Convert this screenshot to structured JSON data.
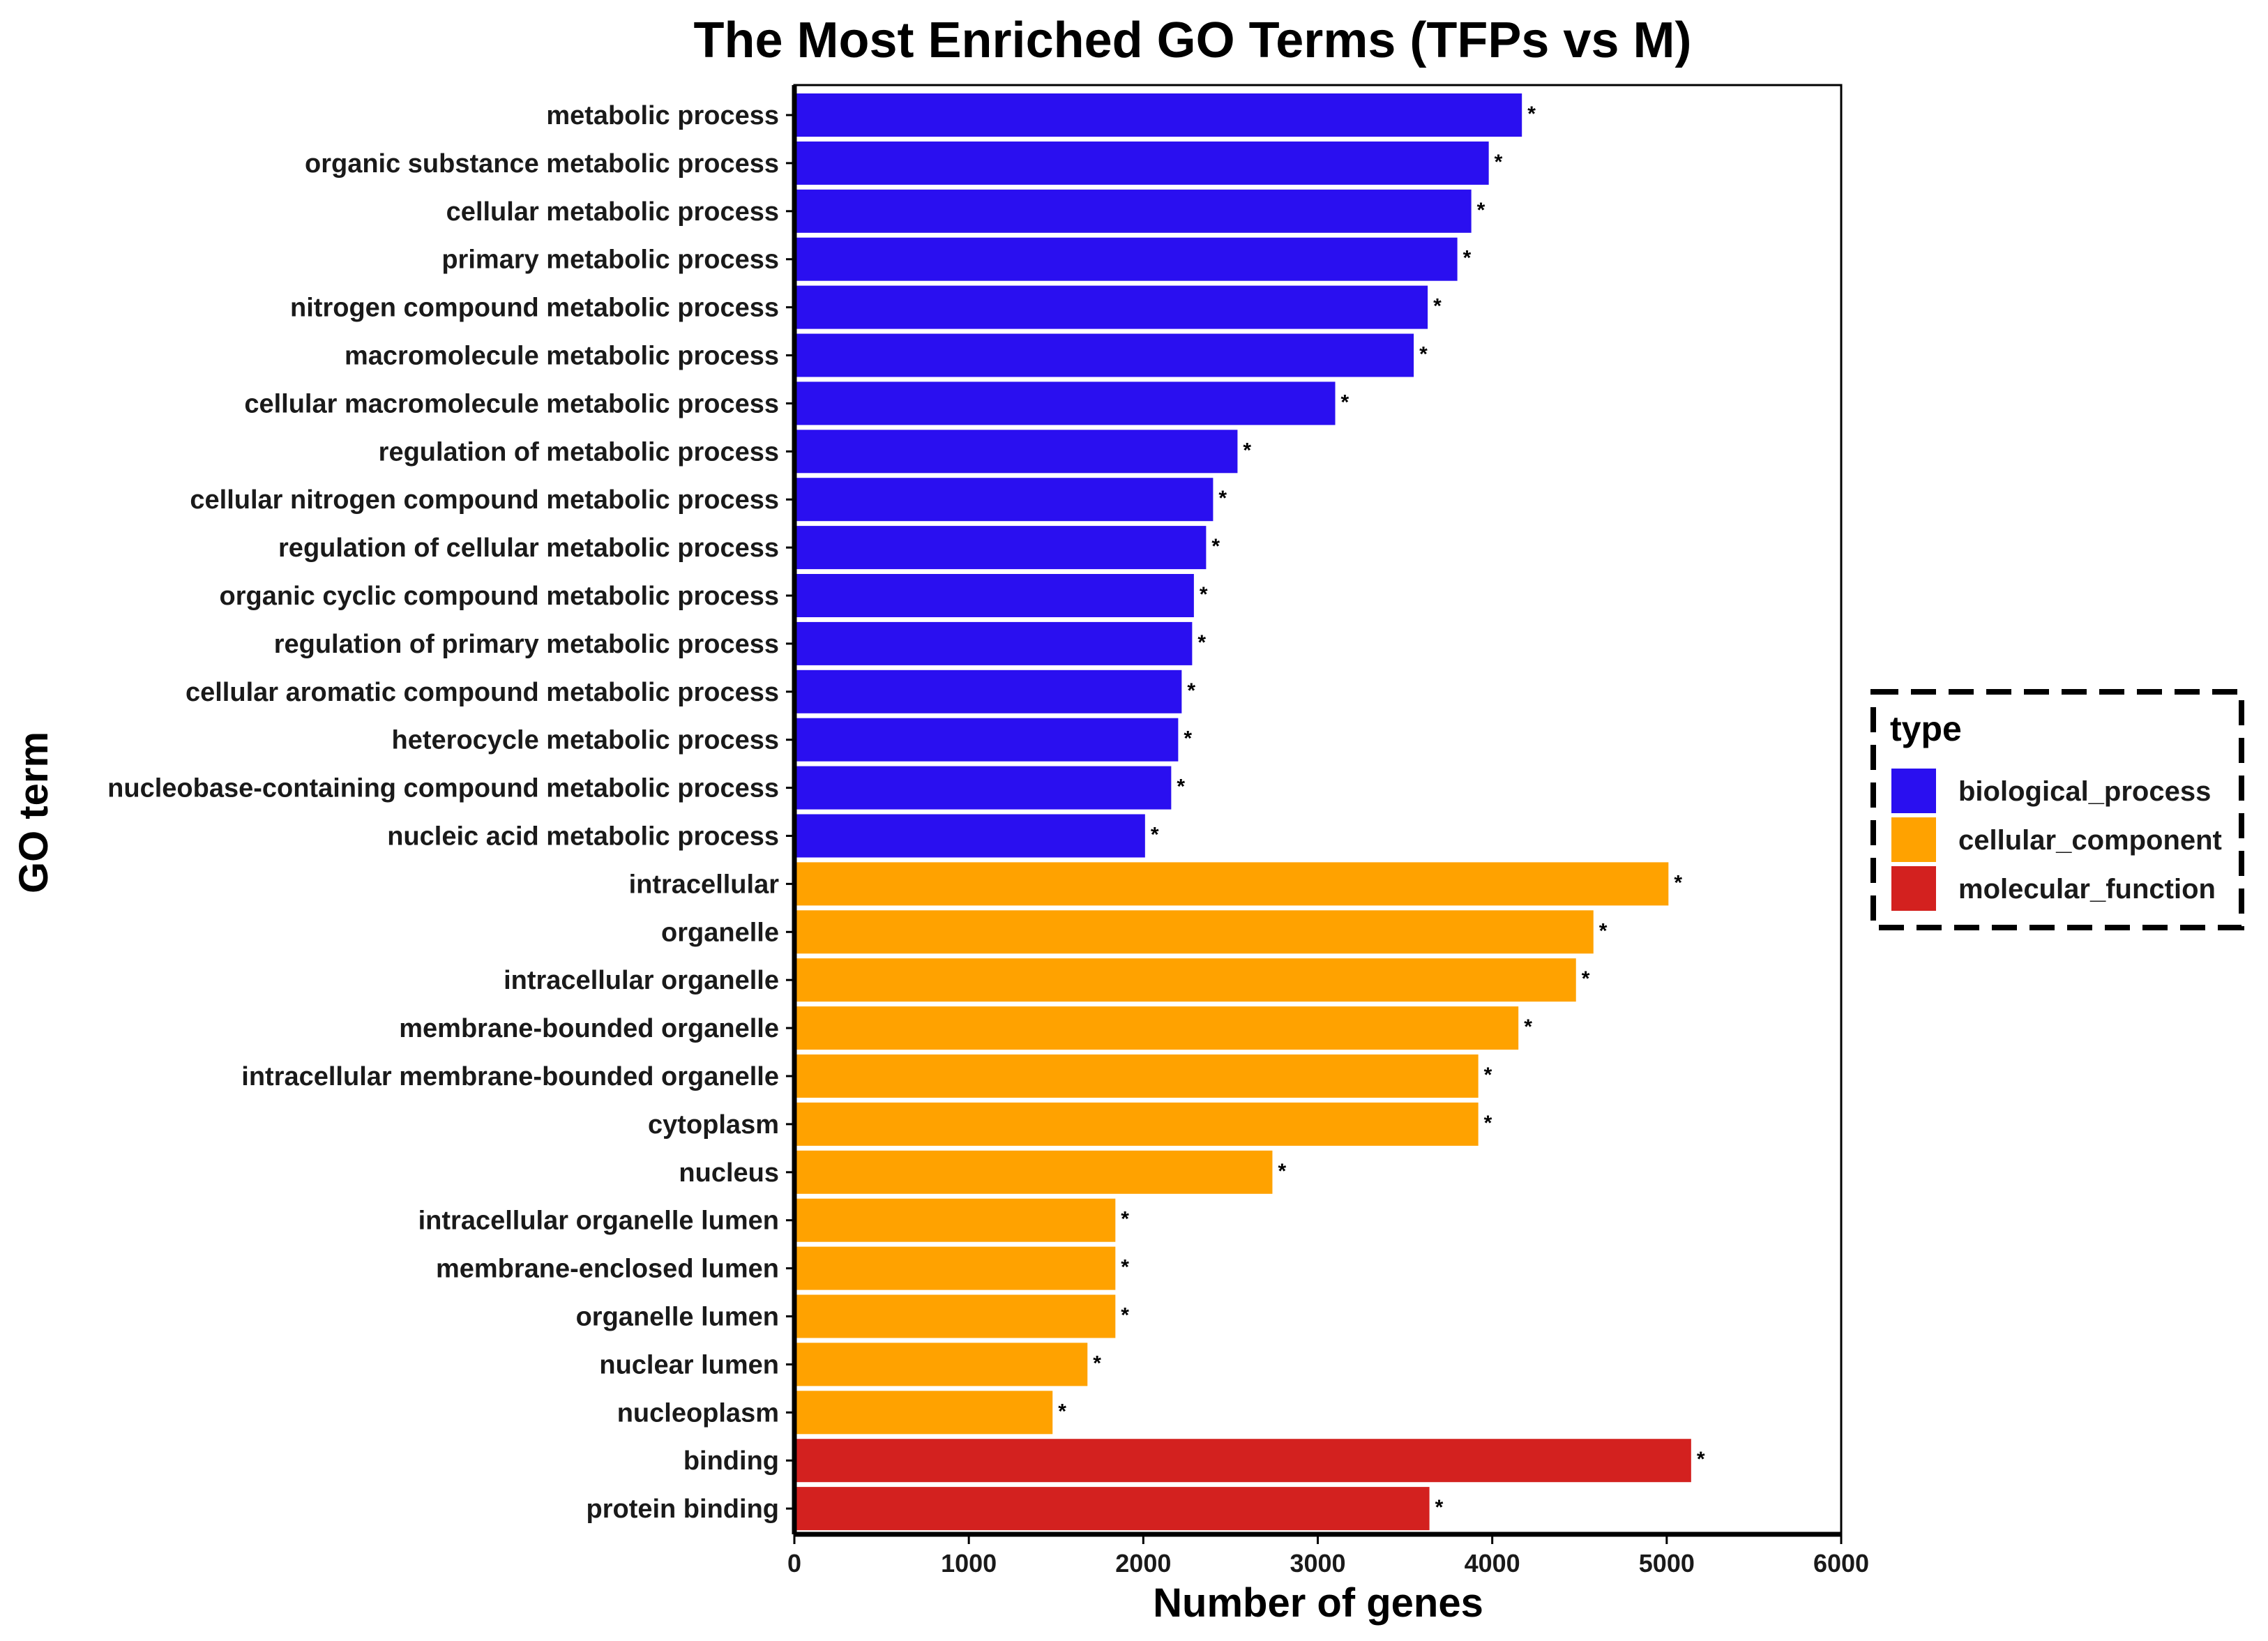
{
  "chart_data": {
    "type": "bar",
    "orientation": "horizontal",
    "title": "The Most Enriched GO Terms (TFPs vs M)",
    "xlabel": "Number of genes",
    "ylabel": "GO term",
    "xlim": [
      0,
      6000
    ],
    "xticks": [
      0,
      1000,
      2000,
      3000,
      4000,
      5000,
      6000
    ],
    "grid": false,
    "legend": {
      "title": "type",
      "position": "right",
      "entries": [
        {
          "label": "biological_process",
          "color": "#2a0ff0"
        },
        {
          "label": "cellular_component",
          "color": "#ffa200"
        },
        {
          "label": "molecular_function",
          "color": "#d3211f"
        }
      ]
    },
    "annotation_marker": "*",
    "categories": [
      "metabolic process",
      "organic substance metabolic process",
      "cellular metabolic process",
      "primary metabolic process",
      "nitrogen compound metabolic process",
      "macromolecule metabolic process",
      "cellular macromolecule metabolic process",
      "regulation of metabolic process",
      "cellular nitrogen compound metabolic process",
      "regulation of cellular metabolic process",
      "organic cyclic compound metabolic process",
      "regulation of primary metabolic process",
      "cellular aromatic compound metabolic process",
      "heterocycle metabolic process",
      "nucleobase-containing compound metabolic process",
      "nucleic acid metabolic process",
      "intracellular",
      "organelle",
      "intracellular organelle",
      "membrane-bounded organelle",
      "intracellular membrane-bounded organelle",
      "cytoplasm",
      "nucleus",
      "intracellular organelle lumen",
      "membrane-enclosed lumen",
      "organelle lumen",
      "nuclear lumen",
      "nucleoplasm",
      "binding",
      "protein binding"
    ],
    "values": [
      4170,
      3980,
      3880,
      3800,
      3630,
      3550,
      3100,
      2540,
      2400,
      2360,
      2290,
      2280,
      2220,
      2200,
      2160,
      2010,
      5010,
      4580,
      4480,
      4150,
      3920,
      3920,
      2740,
      1840,
      1840,
      1840,
      1680,
      1480,
      5140,
      3640
    ],
    "types": [
      "biological_process",
      "biological_process",
      "biological_process",
      "biological_process",
      "biological_process",
      "biological_process",
      "biological_process",
      "biological_process",
      "biological_process",
      "biological_process",
      "biological_process",
      "biological_process",
      "biological_process",
      "biological_process",
      "biological_process",
      "biological_process",
      "cellular_component",
      "cellular_component",
      "cellular_component",
      "cellular_component",
      "cellular_component",
      "cellular_component",
      "cellular_component",
      "cellular_component",
      "cellular_component",
      "cellular_component",
      "cellular_component",
      "cellular_component",
      "molecular_function",
      "molecular_function"
    ]
  }
}
